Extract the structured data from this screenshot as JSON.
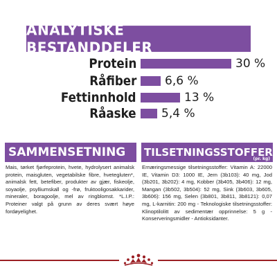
{
  "banner": {
    "title": "ANALYTISKE BESTANDDELER"
  },
  "analysis": [
    {
      "label": "Protein",
      "value_text": "30 %",
      "value": 30
    },
    {
      "label": "Råfiber",
      "value_text": "6,6 %",
      "value": 6.6
    },
    {
      "label": "Fettinnhold",
      "value_text": "13 %",
      "value": 13
    },
    {
      "label": "Råaske",
      "value_text": "5,4 %",
      "value": 5.4
    }
  ],
  "composition": {
    "title": "SAMMENSETNING",
    "text": "Mais, tørket fjørfeprotein, hvete, hydrolysert animalsk protein, maisgluten, vegetabilske fibre, hvetegluten*, animalsk fett, betefiber, produkter av gjær, fiskeolje, soyaolje, psylliumskall og -frø, fruktooligosakkarider, mineraler, boragoolje, mel av ringblomst. *L.I.P.: Proteiner valgt på grunn av deres svært høye fordøyelighet."
  },
  "additives": {
    "title": "TILSETNINGSSTOFFER",
    "subtitle": "(pr. kg)",
    "text": "Ernæringsmessige tilsetningsstoffer: Vitamin A: 22000 IE, Vitamin D3: 1000 IE, Jern (3b103): 40 mg, Jod (3b201, 3b202): 4 mg, Kobber (3b405, 3b406): 12 mg, Mangan (3b502, 3b504): 52 mg, Sink (3b603, 3b605, 3b606): 156 mg, Selen (3b801, 3b811, 3b8121): 0,07 mg, L-karnitin: 200 mg - Teknologiske tilsetningsstoffer: Klinoptilolitt av sedimentær opprinnelse: 5 g - Konserveringsmidler - Antioksidanter."
  },
  "colors": {
    "accent": "#7d4ea0",
    "brand_red": "#9b1f24"
  },
  "logo": {
    "icon": "royal-canin-crown-logo"
  }
}
